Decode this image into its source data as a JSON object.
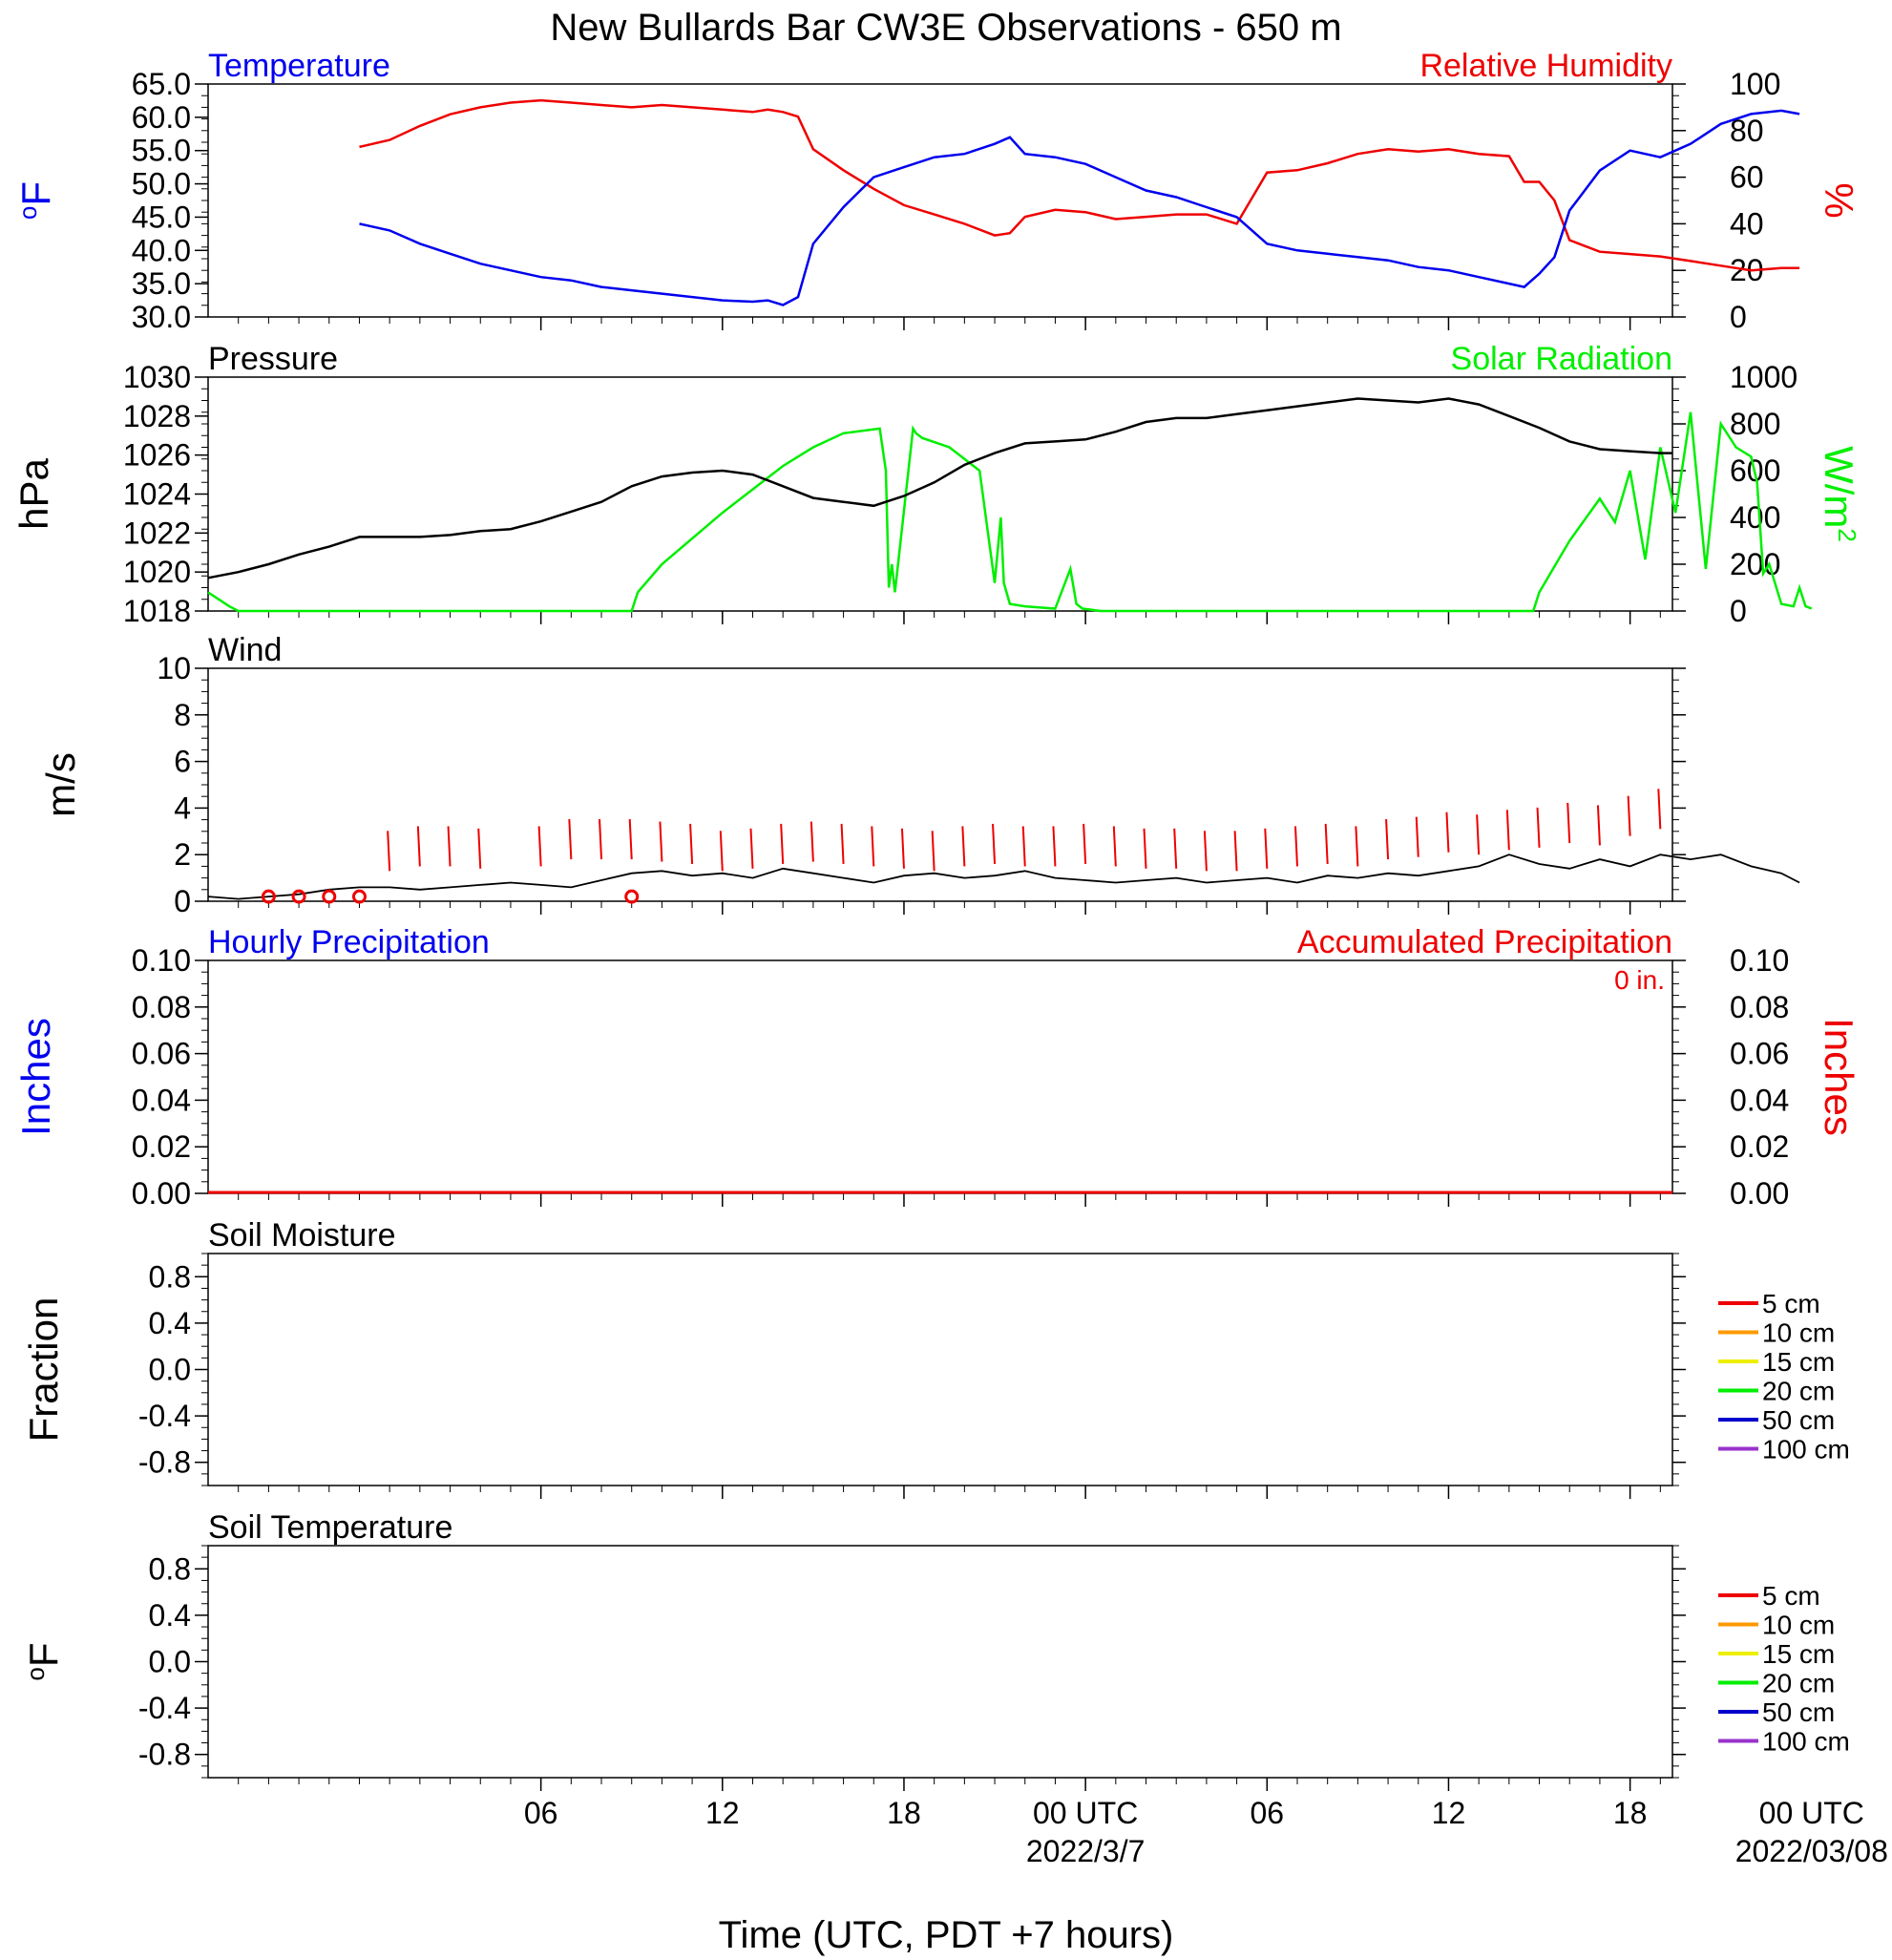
{
  "title": "New Bullards Bar CW3E Observations - 650 m",
  "colors": {
    "temperature": "#0000ee",
    "humidity": "#ee0000",
    "pressure": "#000000",
    "solar": "#00ee00",
    "wind_speed": "#000000",
    "wind_barb": "#ee0000",
    "soil_5": "#ee0000",
    "soil_10": "#ff9900",
    "soil_15": "#eeee00",
    "soil_20": "#00ee00",
    "soil_50": "#0000cc",
    "soil_100": "#9933cc"
  },
  "time_axis": {
    "xlabel": "Time (UTC, PDT +7 hours)",
    "range_hours": [
      -5,
      43.4
    ],
    "tick_hours": [
      6,
      12,
      18,
      24,
      30,
      36,
      42,
      48
    ],
    "tick_labels": [
      "06",
      "12",
      "18",
      "00 UTC",
      "06",
      "12",
      "18",
      "00 UTC"
    ],
    "date_labels": [
      {
        "hour": 24,
        "text": "2022/3/7"
      },
      {
        "hour": 48,
        "text": "2022/03/08"
      }
    ]
  },
  "chart_data": [
    {
      "type": "line",
      "name": "temp-rh",
      "title_left": "Temperature",
      "title_right": "Relative Humidity",
      "ylabel_left": "oF",
      "ylabel_right": "%",
      "ylim_left": [
        30,
        65
      ],
      "ylim_right": [
        0,
        100
      ],
      "yticks_left": [
        "30.0",
        "35.0",
        "40.0",
        "45.0",
        "50.0",
        "55.0",
        "60.0",
        "65.0"
      ],
      "yticks_right": [
        "0",
        "20",
        "40",
        "60",
        "80",
        "100"
      ],
      "x": [
        0,
        1,
        2,
        3,
        4,
        5,
        6,
        7,
        8,
        9,
        10,
        11,
        12,
        13,
        13.5,
        14,
        14.5,
        15,
        16,
        17,
        18,
        19,
        20,
        21,
        21.5,
        22,
        23,
        24,
        25,
        26,
        27,
        28,
        29,
        30,
        31,
        32,
        33,
        34,
        35,
        36,
        37,
        38,
        38.5,
        39,
        39.5,
        40,
        41,
        42,
        43,
        44,
        45,
        46,
        47,
        47.6
      ],
      "series": [
        {
          "name": "Temperature",
          "axis": "left",
          "values": [
            44,
            43,
            41,
            39.5,
            38,
            37,
            36,
            35.5,
            34.5,
            34,
            33.5,
            33,
            32.5,
            32.3,
            32.5,
            31.8,
            33,
            41,
            46.5,
            51,
            52.5,
            54,
            54.5,
            56,
            57,
            54.5,
            54,
            53,
            51,
            49,
            48,
            46.5,
            45,
            41,
            40,
            39.5,
            39,
            38.5,
            37.5,
            37,
            36,
            35,
            34.5,
            36.5,
            39,
            46,
            52,
            55,
            54,
            56,
            59,
            60.5,
            61,
            60.5
          ]
        },
        {
          "name": "Relative Humidity",
          "axis": "right",
          "values": [
            73,
            76,
            82,
            87,
            90,
            92,
            93,
            92,
            91,
            90,
            91,
            90,
            89,
            88,
            89,
            88,
            86,
            72,
            63,
            55,
            48,
            44,
            40,
            35,
            36,
            43,
            46,
            45,
            42,
            43,
            44,
            44,
            40,
            62,
            63,
            66,
            70,
            72,
            71,
            72,
            70,
            69,
            58,
            58,
            50,
            33,
            28,
            27,
            26,
            24,
            22,
            20,
            21,
            21
          ]
        }
      ]
    },
    {
      "type": "line",
      "name": "pressure-solar",
      "title_left": "Pressure",
      "title_right": "Solar Radiation",
      "ylabel_left": "hPa",
      "ylabel_right": "W/m2",
      "ylim_left": [
        1018,
        1030
      ],
      "ylim_right": [
        0,
        1000
      ],
      "yticks_left": [
        "1018",
        "1020",
        "1022",
        "1024",
        "1026",
        "1028",
        "1030"
      ],
      "yticks_right": [
        "0",
        "200",
        "400",
        "600",
        "800",
        "1000"
      ],
      "x_left": [
        -5,
        -4,
        -3,
        -2,
        -1,
        0,
        1,
        2,
        3,
        4,
        5,
        6,
        7,
        8,
        9,
        10,
        11,
        12,
        13,
        14,
        15,
        16,
        17,
        18,
        19,
        20,
        21,
        22,
        23,
        24,
        25,
        26,
        27,
        28,
        29,
        30,
        31,
        32,
        33,
        34,
        35,
        36,
        37,
        38,
        39,
        40,
        41,
        42,
        43,
        43.4
      ],
      "pressure": [
        1019.7,
        1020,
        1020.4,
        1020.9,
        1021.3,
        1021.8,
        1021.8,
        1021.8,
        1021.9,
        1022.1,
        1022.2,
        1022.6,
        1023.1,
        1023.6,
        1024.4,
        1024.9,
        1025.1,
        1025.2,
        1025,
        1024.4,
        1023.8,
        1023.6,
        1023.4,
        1023.9,
        1024.6,
        1025.5,
        1026.1,
        1026.6,
        1026.7,
        1026.8,
        1027.2,
        1027.7,
        1027.9,
        1027.9,
        1028.1,
        1028.3,
        1028.5,
        1028.7,
        1028.9,
        1028.8,
        1028.7,
        1028.9,
        1028.6,
        1028,
        1027.4,
        1026.7,
        1026.3,
        1026.2,
        1026.1,
        1026.1
      ],
      "solar_x": [
        -5,
        -4.3,
        -4,
        9,
        9.2,
        10,
        12,
        14,
        15,
        16,
        17.2,
        17.4,
        17.5,
        17.6,
        17.7,
        18.3,
        18.4,
        18.6,
        19.5,
        20.5,
        21,
        21.2,
        21.3,
        21.5,
        22,
        23,
        23.5,
        23.7,
        23.9,
        24.5,
        30,
        38.8,
        39,
        40,
        41,
        41.5,
        42,
        42.5,
        43,
        43.5,
        44,
        44.5,
        45,
        45.5,
        46,
        46.2,
        46.4,
        46.6,
        47,
        47.4,
        47.6,
        47.8,
        48
      ],
      "solar": [
        80,
        20,
        0,
        0,
        80,
        200,
        420,
        620,
        700,
        760,
        780,
        600,
        100,
        200,
        80,
        780,
        760,
        740,
        700,
        600,
        120,
        400,
        120,
        30,
        20,
        10,
        180,
        30,
        10,
        0,
        0,
        0,
        80,
        300,
        480,
        380,
        600,
        220,
        700,
        420,
        850,
        180,
        800,
        700,
        660,
        550,
        160,
        200,
        30,
        20,
        100,
        20,
        10
      ]
    },
    {
      "type": "line",
      "name": "wind",
      "title_left": "Wind",
      "ylabel_left": "m/s",
      "ylim_left": [
        0,
        10
      ],
      "yticks_left": [
        "0",
        "2",
        "4",
        "6",
        "8",
        "10"
      ],
      "x": [
        -5,
        -4,
        -3,
        -2,
        -1,
        0,
        1,
        2,
        3,
        4,
        5,
        6,
        7,
        8,
        9,
        10,
        11,
        12,
        13,
        14,
        15,
        16,
        17,
        18,
        19,
        20,
        21,
        22,
        23,
        24,
        25,
        26,
        27,
        28,
        29,
        30,
        31,
        32,
        33,
        34,
        35,
        36,
        37,
        38,
        39,
        40,
        41,
        42,
        43,
        44,
        45,
        46,
        47,
        47.6
      ],
      "values": [
        0.2,
        0.1,
        0.2,
        0.3,
        0.5,
        0.6,
        0.6,
        0.5,
        0.6,
        0.7,
        0.8,
        0.7,
        0.6,
        0.9,
        1.2,
        1.3,
        1.1,
        1.2,
        1.0,
        1.4,
        1.2,
        1.0,
        0.8,
        1.1,
        1.2,
        1.0,
        1.1,
        1.3,
        1.0,
        0.9,
        0.8,
        0.9,
        1.0,
        0.8,
        0.9,
        1.0,
        0.8,
        1.1,
        1.0,
        1.2,
        1.1,
        1.3,
        1.5,
        2.0,
        1.6,
        1.4,
        1.8,
        1.5,
        2.0,
        1.8,
        2.0,
        1.5,
        1.2,
        0.8
      ],
      "barb_hours": [
        1,
        2,
        3,
        4,
        6,
        7,
        8,
        9,
        10,
        11,
        12,
        13,
        14,
        15,
        16,
        17,
        18,
        19,
        20,
        21,
        22,
        23,
        24,
        25,
        26,
        27,
        28,
        29,
        30,
        31,
        32,
        33,
        34,
        35,
        36,
        37,
        38,
        39,
        40,
        41,
        42,
        43
      ],
      "barb_speeds": [
        1.3,
        1.5,
        1.5,
        1.4,
        1.5,
        1.8,
        1.8,
        1.8,
        1.7,
        1.6,
        1.3,
        1.4,
        1.6,
        1.7,
        1.6,
        1.5,
        1.4,
        1.3,
        1.5,
        1.6,
        1.5,
        1.5,
        1.6,
        1.5,
        1.4,
        1.4,
        1.3,
        1.3,
        1.4,
        1.5,
        1.6,
        1.5,
        1.8,
        1.9,
        2.1,
        2.0,
        2.2,
        2.3,
        2.5,
        2.4,
        2.8,
        3.1
      ],
      "calm_hours": [
        -3,
        -2,
        -1,
        0,
        9
      ]
    },
    {
      "type": "line",
      "name": "precip",
      "title_left": "Hourly Precipitation",
      "title_right": "Accumulated Precipitation",
      "accum_label": "0 in.",
      "ylabel_left": "Inches",
      "ylabel_right": "Inches",
      "ylim_left": [
        0,
        0.1
      ],
      "ylim_right": [
        0,
        0.1
      ],
      "yticks_left": [
        "0.00",
        "0.02",
        "0.04",
        "0.06",
        "0.08",
        "0.10"
      ],
      "yticks_right": [
        "0.00",
        "0.02",
        "0.04",
        "0.06",
        "0.08",
        "0.10"
      ],
      "values": [
        0,
        0
      ]
    },
    {
      "type": "line",
      "name": "soil-moisture",
      "title_left": "Soil Moisture",
      "ylabel_left": "Fraction",
      "ylim_left": [
        -1,
        1
      ],
      "yticks_left": [
        "-0.8",
        "-0.4",
        "0.0",
        "0.4",
        "0.8"
      ],
      "legend": [
        "5 cm",
        "10 cm",
        "15 cm",
        "20 cm",
        "50 cm",
        "100 cm"
      ]
    },
    {
      "type": "line",
      "name": "soil-temperature",
      "title_left": "Soil Temperature",
      "ylabel_left": "oF",
      "ylim_left": [
        -1,
        1
      ],
      "yticks_left": [
        "-0.8",
        "-0.4",
        "0.0",
        "0.4",
        "0.8"
      ],
      "legend": [
        "5 cm",
        "10 cm",
        "15 cm",
        "20 cm",
        "50 cm",
        "100 cm"
      ]
    }
  ]
}
